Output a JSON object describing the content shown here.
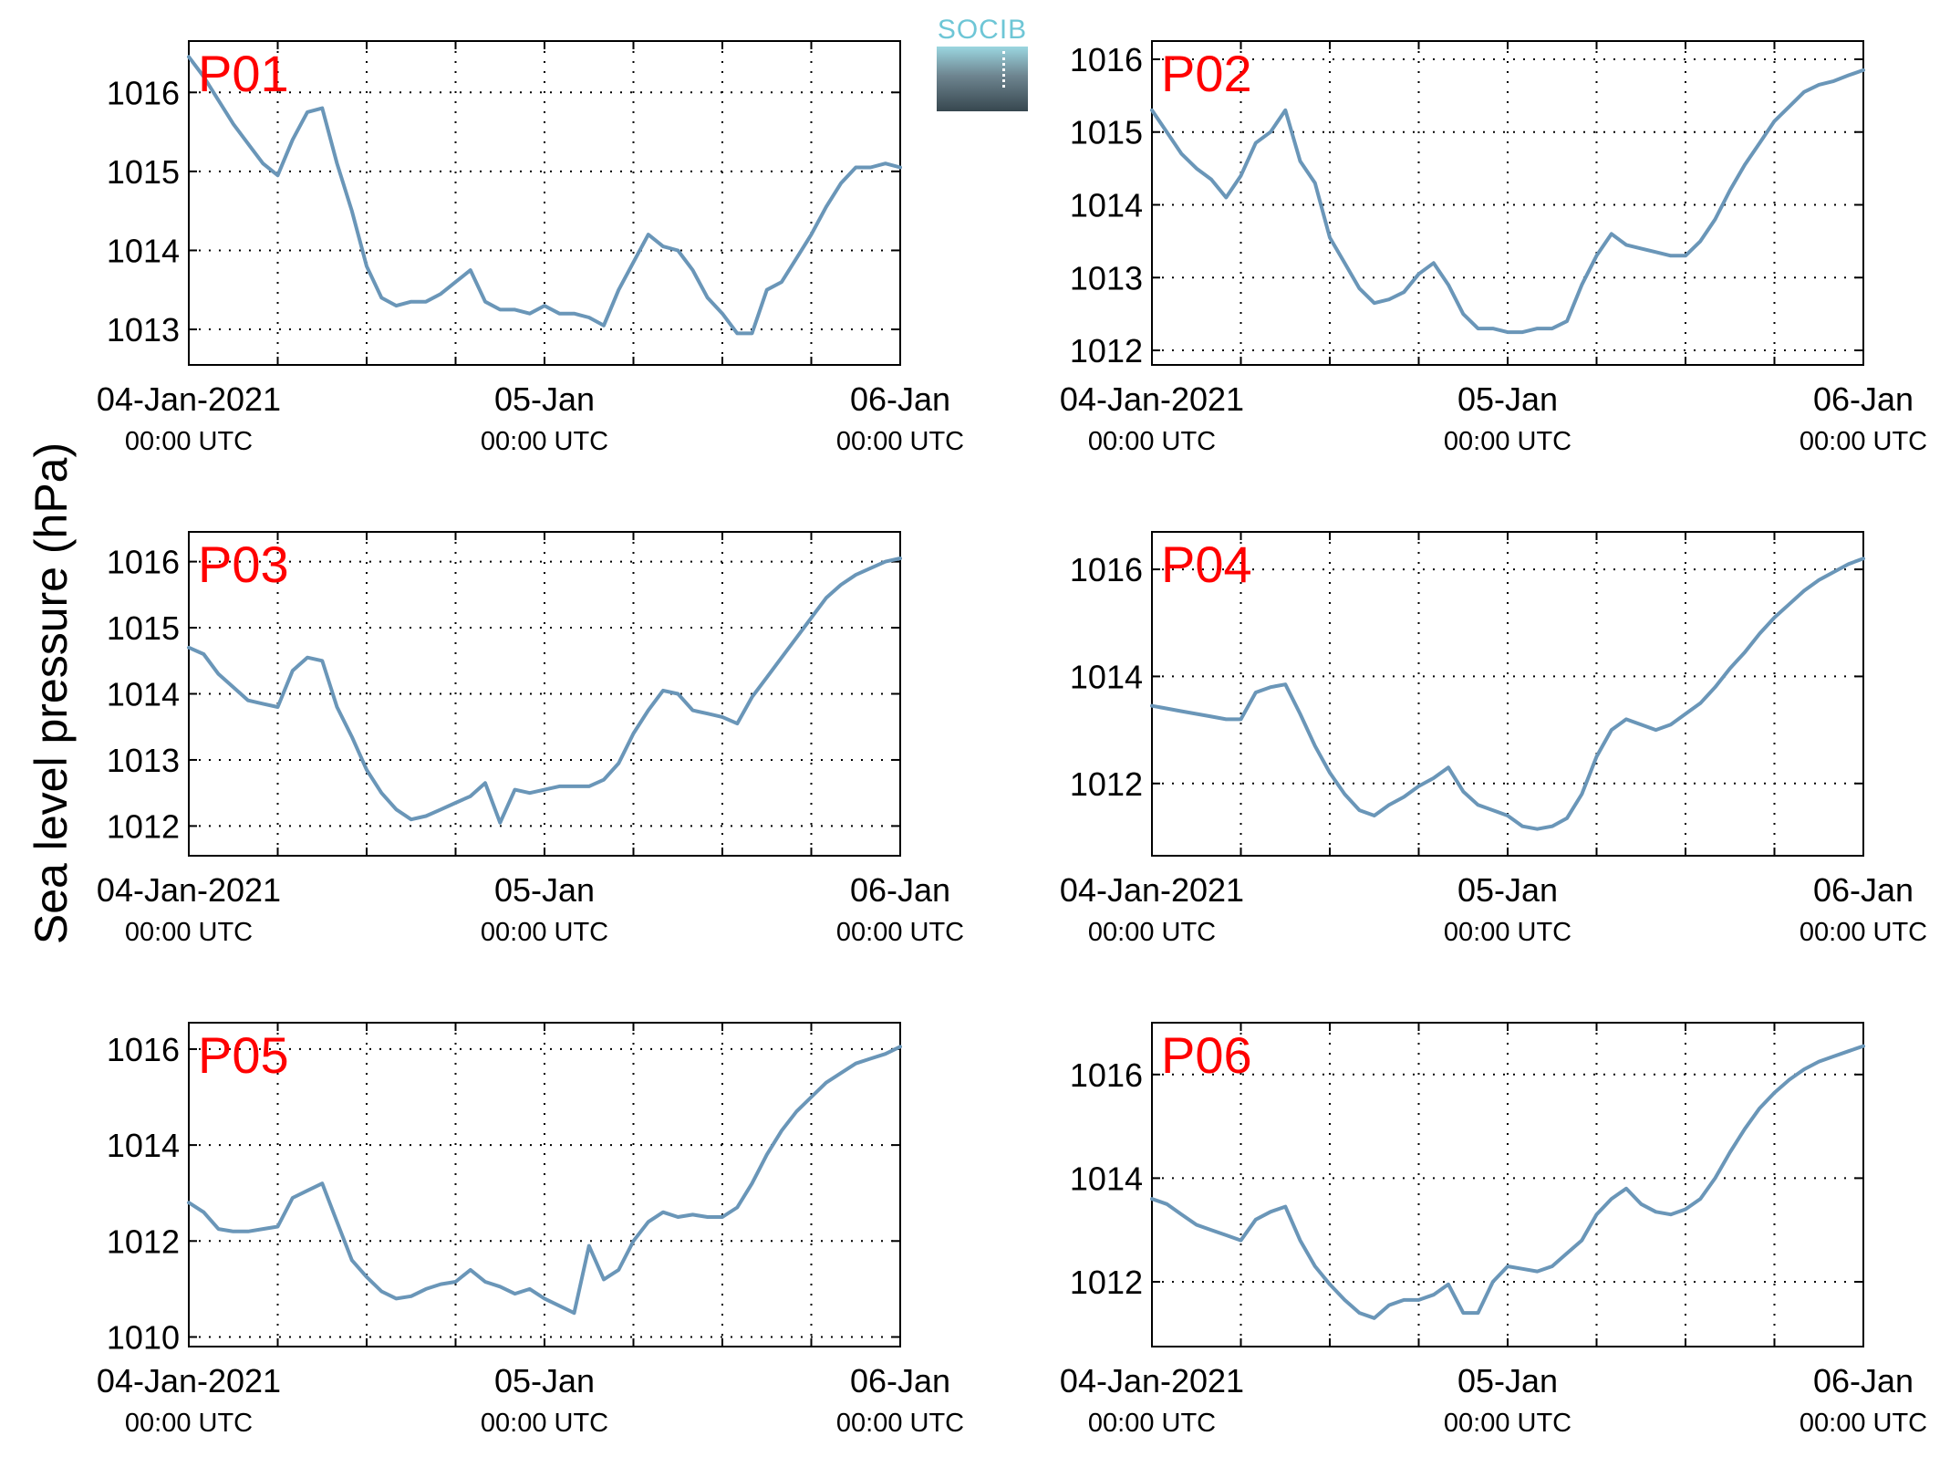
{
  "figure": {
    "ylabel": "Sea level pressure (hPa)",
    "logo_text": "SOCIB",
    "line_color": "#6a96b8",
    "panel_label_color": "#ff0000"
  },
  "chart_data": [
    {
      "type": "line",
      "panel_label": "P01",
      "xlim": [
        0,
        48
      ],
      "ylim": [
        1012.55,
        1016.65
      ],
      "yticks": [
        1013,
        1014,
        1015,
        1016
      ],
      "xticks": [
        {
          "label": "04-Jan-2021",
          "sub": "00:00 UTC"
        },
        {
          "label": "05-Jan",
          "sub": "00:00 UTC"
        },
        {
          "label": "06-Jan",
          "sub": "00:00 UTC"
        }
      ],
      "grid": true,
      "x": [
        0,
        1,
        2,
        3,
        4,
        5,
        6,
        7,
        8,
        9,
        10,
        11,
        12,
        13,
        14,
        15,
        16,
        17,
        18,
        19,
        20,
        21,
        22,
        23,
        24,
        25,
        26,
        27,
        28,
        29,
        30,
        31,
        32,
        33,
        34,
        35,
        36,
        37,
        38,
        39,
        40,
        41,
        42,
        43,
        44,
        45,
        46,
        47,
        48
      ],
      "y": [
        1016.45,
        1016.2,
        1015.9,
        1015.6,
        1015.35,
        1015.1,
        1014.95,
        1015.4,
        1015.75,
        1015.8,
        1015.1,
        1014.5,
        1013.8,
        1013.4,
        1013.3,
        1013.35,
        1013.35,
        1013.45,
        1013.6,
        1013.75,
        1013.35,
        1013.25,
        1013.25,
        1013.2,
        1013.3,
        1013.2,
        1013.2,
        1013.15,
        1013.05,
        1013.5,
        1013.85,
        1014.2,
        1014.05,
        1014.0,
        1013.75,
        1013.4,
        1013.2,
        1012.95,
        1012.95,
        1013.5,
        1013.6,
        1013.9,
        1014.2,
        1014.55,
        1014.85,
        1015.05,
        1015.05,
        1015.1,
        1015.05
      ]
    },
    {
      "type": "line",
      "panel_label": "P02",
      "xlim": [
        0,
        48
      ],
      "ylim": [
        1011.8,
        1016.25
      ],
      "yticks": [
        1012,
        1013,
        1014,
        1015,
        1016
      ],
      "xticks": [
        {
          "label": "04-Jan-2021",
          "sub": "00:00 UTC"
        },
        {
          "label": "05-Jan",
          "sub": "00:00 UTC"
        },
        {
          "label": "06-Jan",
          "sub": "00:00 UTC"
        }
      ],
      "grid": true,
      "x": [
        0,
        1,
        2,
        3,
        4,
        5,
        6,
        7,
        8,
        9,
        10,
        11,
        12,
        13,
        14,
        15,
        16,
        17,
        18,
        19,
        20,
        21,
        22,
        23,
        24,
        25,
        26,
        27,
        28,
        29,
        30,
        31,
        32,
        33,
        34,
        35,
        36,
        37,
        38,
        39,
        40,
        41,
        42,
        43,
        44,
        45,
        46,
        47,
        48
      ],
      "y": [
        1015.3,
        1015.0,
        1014.7,
        1014.5,
        1014.35,
        1014.1,
        1014.4,
        1014.85,
        1015.0,
        1015.3,
        1014.6,
        1014.3,
        1013.55,
        1013.2,
        1012.85,
        1012.65,
        1012.7,
        1012.8,
        1013.05,
        1013.2,
        1012.9,
        1012.5,
        1012.3,
        1012.3,
        1012.25,
        1012.25,
        1012.3,
        1012.3,
        1012.4,
        1012.9,
        1013.3,
        1013.6,
        1013.45,
        1013.4,
        1013.35,
        1013.3,
        1013.3,
        1013.5,
        1013.8,
        1014.2,
        1014.55,
        1014.85,
        1015.15,
        1015.35,
        1015.55,
        1015.65,
        1015.7,
        1015.78,
        1015.85
      ]
    },
    {
      "type": "line",
      "panel_label": "P03",
      "xlim": [
        0,
        48
      ],
      "ylim": [
        1011.55,
        1016.45
      ],
      "yticks": [
        1012,
        1013,
        1014,
        1015,
        1016
      ],
      "xticks": [
        {
          "label": "04-Jan-2021",
          "sub": "00:00 UTC"
        },
        {
          "label": "05-Jan",
          "sub": "00:00 UTC"
        },
        {
          "label": "06-Jan",
          "sub": "00:00 UTC"
        }
      ],
      "grid": true,
      "x": [
        0,
        1,
        2,
        3,
        4,
        5,
        6,
        7,
        8,
        9,
        10,
        11,
        12,
        13,
        14,
        15,
        16,
        17,
        18,
        19,
        20,
        21,
        22,
        23,
        24,
        25,
        26,
        27,
        28,
        29,
        30,
        31,
        32,
        33,
        34,
        35,
        36,
        37,
        38,
        39,
        40,
        41,
        42,
        43,
        44,
        45,
        46,
        47,
        48
      ],
      "y": [
        1014.7,
        1014.6,
        1014.3,
        1014.1,
        1013.9,
        1013.85,
        1013.8,
        1014.35,
        1014.55,
        1014.5,
        1013.8,
        1013.35,
        1012.85,
        1012.5,
        1012.25,
        1012.1,
        1012.15,
        1012.25,
        1012.35,
        1012.45,
        1012.65,
        1012.05,
        1012.55,
        1012.5,
        1012.55,
        1012.6,
        1012.6,
        1012.6,
        1012.7,
        1012.95,
        1013.4,
        1013.75,
        1014.05,
        1014.0,
        1013.75,
        1013.7,
        1013.65,
        1013.55,
        1013.95,
        1014.25,
        1014.55,
        1014.85,
        1015.15,
        1015.45,
        1015.65,
        1015.8,
        1015.9,
        1016.0,
        1016.05
      ]
    },
    {
      "type": "line",
      "panel_label": "P04",
      "xlim": [
        0,
        48
      ],
      "ylim": [
        1010.65,
        1016.7
      ],
      "yticks": [
        1012,
        1014,
        1016
      ],
      "xticks": [
        {
          "label": "04-Jan-2021",
          "sub": "00:00 UTC"
        },
        {
          "label": "05-Jan",
          "sub": "00:00 UTC"
        },
        {
          "label": "06-Jan",
          "sub": "00:00 UTC"
        }
      ],
      "grid": true,
      "x": [
        0,
        1,
        2,
        3,
        4,
        5,
        6,
        7,
        8,
        9,
        10,
        11,
        12,
        13,
        14,
        15,
        16,
        17,
        18,
        19,
        20,
        21,
        22,
        23,
        24,
        25,
        26,
        27,
        28,
        29,
        30,
        31,
        32,
        33,
        34,
        35,
        36,
        37,
        38,
        39,
        40,
        41,
        42,
        43,
        44,
        45,
        46,
        47,
        48
      ],
      "y": [
        1013.45,
        1013.4,
        1013.35,
        1013.3,
        1013.25,
        1013.2,
        1013.2,
        1013.7,
        1013.8,
        1013.85,
        1013.3,
        1012.7,
        1012.2,
        1011.8,
        1011.5,
        1011.4,
        1011.6,
        1011.75,
        1011.95,
        1012.1,
        1012.3,
        1011.85,
        1011.6,
        1011.5,
        1011.4,
        1011.2,
        1011.15,
        1011.2,
        1011.35,
        1011.8,
        1012.5,
        1013.0,
        1013.2,
        1013.1,
        1013.0,
        1013.1,
        1013.3,
        1013.5,
        1013.8,
        1014.15,
        1014.45,
        1014.8,
        1015.1,
        1015.35,
        1015.6,
        1015.8,
        1015.95,
        1016.1,
        1016.2
      ]
    },
    {
      "type": "line",
      "panel_label": "P05",
      "xlim": [
        0,
        48
      ],
      "ylim": [
        1009.8,
        1016.55
      ],
      "yticks": [
        1010,
        1012,
        1014,
        1016
      ],
      "xticks": [
        {
          "label": "04-Jan-2021",
          "sub": "00:00 UTC"
        },
        {
          "label": "05-Jan",
          "sub": "00:00 UTC"
        },
        {
          "label": "06-Jan",
          "sub": "00:00 UTC"
        }
      ],
      "grid": true,
      "x": [
        0,
        1,
        2,
        3,
        4,
        5,
        6,
        7,
        8,
        9,
        10,
        11,
        12,
        13,
        14,
        15,
        16,
        17,
        18,
        19,
        20,
        21,
        22,
        23,
        24,
        25,
        26,
        27,
        28,
        29,
        30,
        31,
        32,
        33,
        34,
        35,
        36,
        37,
        38,
        39,
        40,
        41,
        42,
        43,
        44,
        45,
        46,
        47,
        48
      ],
      "y": [
        1012.8,
        1012.6,
        1012.25,
        1012.2,
        1012.2,
        1012.25,
        1012.3,
        1012.9,
        1013.05,
        1013.2,
        1012.4,
        1011.6,
        1011.25,
        1010.95,
        1010.8,
        1010.85,
        1011.0,
        1011.1,
        1011.15,
        1011.4,
        1011.15,
        1011.05,
        1010.9,
        1011.0,
        1010.8,
        1010.65,
        1010.5,
        1011.9,
        1011.2,
        1011.4,
        1012.0,
        1012.4,
        1012.6,
        1012.5,
        1012.55,
        1012.5,
        1012.5,
        1012.7,
        1013.2,
        1013.8,
        1014.3,
        1014.7,
        1015.0,
        1015.3,
        1015.5,
        1015.7,
        1015.8,
        1015.9,
        1016.05
      ]
    },
    {
      "type": "line",
      "panel_label": "P06",
      "xlim": [
        0,
        48
      ],
      "ylim": [
        1010.75,
        1017.0
      ],
      "yticks": [
        1012,
        1014,
        1016
      ],
      "xticks": [
        {
          "label": "04-Jan-2021",
          "sub": "00:00 UTC"
        },
        {
          "label": "05-Jan",
          "sub": "00:00 UTC"
        },
        {
          "label": "06-Jan",
          "sub": "00:00 UTC"
        }
      ],
      "grid": true,
      "x": [
        0,
        1,
        2,
        3,
        4,
        5,
        6,
        7,
        8,
        9,
        10,
        11,
        12,
        13,
        14,
        15,
        16,
        17,
        18,
        19,
        20,
        21,
        22,
        23,
        24,
        25,
        26,
        27,
        28,
        29,
        30,
        31,
        32,
        33,
        34,
        35,
        36,
        37,
        38,
        39,
        40,
        41,
        42,
        43,
        44,
        45,
        46,
        47,
        48
      ],
      "y": [
        1013.6,
        1013.5,
        1013.3,
        1013.1,
        1013.0,
        1012.9,
        1012.8,
        1013.2,
        1013.35,
        1013.45,
        1012.8,
        1012.3,
        1011.95,
        1011.65,
        1011.4,
        1011.3,
        1011.55,
        1011.65,
        1011.65,
        1011.75,
        1011.95,
        1011.4,
        1011.4,
        1012.0,
        1012.3,
        1012.25,
        1012.2,
        1012.3,
        1012.55,
        1012.8,
        1013.3,
        1013.6,
        1013.8,
        1013.5,
        1013.35,
        1013.3,
        1013.4,
        1013.6,
        1014.0,
        1014.5,
        1014.95,
        1015.35,
        1015.65,
        1015.9,
        1016.1,
        1016.25,
        1016.35,
        1016.45,
        1016.55
      ]
    }
  ]
}
